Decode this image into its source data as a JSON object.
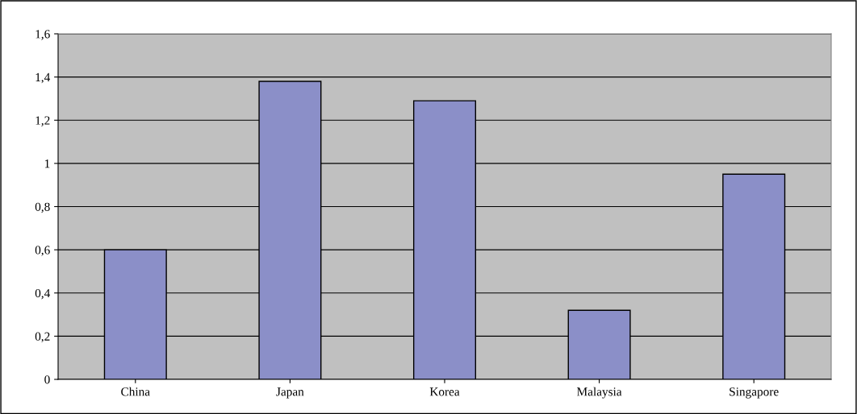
{
  "chart_data": {
    "type": "bar",
    "categories": [
      "China",
      "Japan",
      "Korea",
      "Malaysia",
      "Singapore"
    ],
    "values": [
      0.6,
      1.38,
      1.29,
      0.32,
      0.95
    ],
    "color": "#8b8fc8",
    "ylim": [
      0,
      1.6
    ],
    "yticks": [
      0,
      {
        "value": 0.2,
        "label": "0,2"
      },
      {
        "value": 0.4,
        "label": "0,4"
      },
      {
        "value": 0.6,
        "label": "0,6"
      },
      {
        "value": 0.8,
        "label": "0,8"
      },
      1,
      {
        "value": 1.2,
        "label": "1,2"
      },
      {
        "value": 1.4,
        "label": "1,4"
      },
      {
        "value": 1.6,
        "label": "1,6"
      }
    ],
    "grid": "y",
    "legend": false
  }
}
